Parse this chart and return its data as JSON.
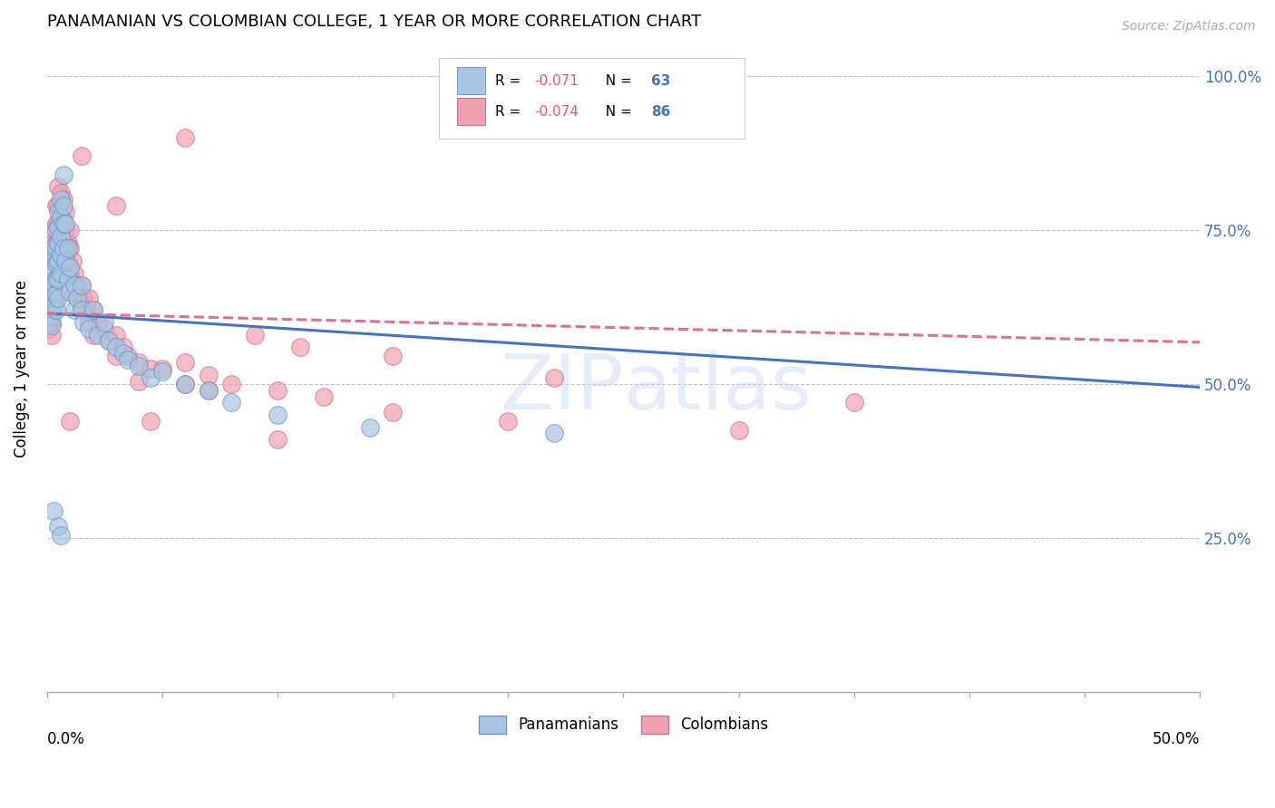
{
  "title": "PANAMANIAN VS COLOMBIAN COLLEGE, 1 YEAR OR MORE CORRELATION CHART",
  "source": "Source: ZipAtlas.com",
  "ylabel": "College, 1 year or more",
  "watermark": "ZIPAtlas",
  "panamanian_color": "#a8c4e0",
  "colombian_color": "#f0a0b0",
  "pan_edge_color": "#6699cc",
  "col_edge_color": "#d07090",
  "trend_pan_color": "#4472c4",
  "trend_col_color": "#e07090",
  "pan_scatter": [
    [
      0.001,
      0.615
    ],
    [
      0.001,
      0.6
    ],
    [
      0.002,
      0.62
    ],
    [
      0.002,
      0.61
    ],
    [
      0.002,
      0.595
    ],
    [
      0.003,
      0.72
    ],
    [
      0.003,
      0.7
    ],
    [
      0.003,
      0.685
    ],
    [
      0.003,
      0.665
    ],
    [
      0.003,
      0.645
    ],
    [
      0.003,
      0.625
    ],
    [
      0.004,
      0.75
    ],
    [
      0.004,
      0.72
    ],
    [
      0.004,
      0.695
    ],
    [
      0.004,
      0.67
    ],
    [
      0.004,
      0.645
    ],
    [
      0.004,
      0.62
    ],
    [
      0.005,
      0.78
    ],
    [
      0.005,
      0.755
    ],
    [
      0.005,
      0.73
    ],
    [
      0.005,
      0.7
    ],
    [
      0.005,
      0.67
    ],
    [
      0.005,
      0.64
    ],
    [
      0.006,
      0.8
    ],
    [
      0.006,
      0.77
    ],
    [
      0.006,
      0.74
    ],
    [
      0.006,
      0.71
    ],
    [
      0.006,
      0.68
    ],
    [
      0.007,
      0.84
    ],
    [
      0.007,
      0.79
    ],
    [
      0.007,
      0.76
    ],
    [
      0.007,
      0.72
    ],
    [
      0.008,
      0.76
    ],
    [
      0.008,
      0.7
    ],
    [
      0.009,
      0.72
    ],
    [
      0.009,
      0.67
    ],
    [
      0.01,
      0.69
    ],
    [
      0.01,
      0.65
    ],
    [
      0.012,
      0.66
    ],
    [
      0.012,
      0.62
    ],
    [
      0.013,
      0.64
    ],
    [
      0.015,
      0.66
    ],
    [
      0.015,
      0.62
    ],
    [
      0.016,
      0.6
    ],
    [
      0.018,
      0.59
    ],
    [
      0.02,
      0.62
    ],
    [
      0.022,
      0.58
    ],
    [
      0.025,
      0.6
    ],
    [
      0.027,
      0.57
    ],
    [
      0.03,
      0.56
    ],
    [
      0.033,
      0.55
    ],
    [
      0.035,
      0.54
    ],
    [
      0.04,
      0.53
    ],
    [
      0.045,
      0.51
    ],
    [
      0.05,
      0.52
    ],
    [
      0.06,
      0.5
    ],
    [
      0.07,
      0.49
    ],
    [
      0.08,
      0.47
    ],
    [
      0.1,
      0.45
    ],
    [
      0.14,
      0.43
    ],
    [
      0.22,
      0.42
    ],
    [
      0.003,
      0.295
    ],
    [
      0.005,
      0.27
    ],
    [
      0.006,
      0.255
    ]
  ],
  "colombian_scatter": [
    [
      0.001,
      0.62
    ],
    [
      0.001,
      0.605
    ],
    [
      0.001,
      0.59
    ],
    [
      0.002,
      0.64
    ],
    [
      0.002,
      0.62
    ],
    [
      0.002,
      0.6
    ],
    [
      0.002,
      0.58
    ],
    [
      0.003,
      0.75
    ],
    [
      0.003,
      0.73
    ],
    [
      0.003,
      0.71
    ],
    [
      0.003,
      0.69
    ],
    [
      0.003,
      0.665
    ],
    [
      0.003,
      0.64
    ],
    [
      0.004,
      0.79
    ],
    [
      0.004,
      0.76
    ],
    [
      0.004,
      0.73
    ],
    [
      0.004,
      0.7
    ],
    [
      0.004,
      0.67
    ],
    [
      0.004,
      0.64
    ],
    [
      0.005,
      0.82
    ],
    [
      0.005,
      0.79
    ],
    [
      0.005,
      0.76
    ],
    [
      0.005,
      0.73
    ],
    [
      0.005,
      0.695
    ],
    [
      0.006,
      0.81
    ],
    [
      0.006,
      0.78
    ],
    [
      0.006,
      0.75
    ],
    [
      0.006,
      0.715
    ],
    [
      0.006,
      0.68
    ],
    [
      0.007,
      0.8
    ],
    [
      0.007,
      0.765
    ],
    [
      0.007,
      0.73
    ],
    [
      0.008,
      0.78
    ],
    [
      0.008,
      0.745
    ],
    [
      0.008,
      0.71
    ],
    [
      0.009,
      0.73
    ],
    [
      0.009,
      0.695
    ],
    [
      0.01,
      0.75
    ],
    [
      0.01,
      0.72
    ],
    [
      0.01,
      0.68
    ],
    [
      0.011,
      0.7
    ],
    [
      0.011,
      0.665
    ],
    [
      0.012,
      0.68
    ],
    [
      0.012,
      0.645
    ],
    [
      0.013,
      0.66
    ],
    [
      0.014,
      0.64
    ],
    [
      0.015,
      0.66
    ],
    [
      0.015,
      0.625
    ],
    [
      0.016,
      0.64
    ],
    [
      0.017,
      0.62
    ],
    [
      0.018,
      0.64
    ],
    [
      0.018,
      0.6
    ],
    [
      0.02,
      0.62
    ],
    [
      0.02,
      0.58
    ],
    [
      0.022,
      0.6
    ],
    [
      0.025,
      0.59
    ],
    [
      0.027,
      0.57
    ],
    [
      0.03,
      0.58
    ],
    [
      0.03,
      0.545
    ],
    [
      0.033,
      0.56
    ],
    [
      0.035,
      0.545
    ],
    [
      0.04,
      0.535
    ],
    [
      0.04,
      0.505
    ],
    [
      0.045,
      0.525
    ],
    [
      0.05,
      0.525
    ],
    [
      0.06,
      0.535
    ],
    [
      0.06,
      0.5
    ],
    [
      0.07,
      0.515
    ],
    [
      0.07,
      0.49
    ],
    [
      0.08,
      0.5
    ],
    [
      0.1,
      0.49
    ],
    [
      0.12,
      0.48
    ],
    [
      0.15,
      0.455
    ],
    [
      0.2,
      0.44
    ],
    [
      0.3,
      0.425
    ],
    [
      0.015,
      0.87
    ],
    [
      0.06,
      0.9
    ],
    [
      0.03,
      0.79
    ],
    [
      0.09,
      0.58
    ],
    [
      0.11,
      0.56
    ],
    [
      0.15,
      0.545
    ],
    [
      0.22,
      0.51
    ],
    [
      0.35,
      0.47
    ],
    [
      0.01,
      0.44
    ],
    [
      0.045,
      0.44
    ],
    [
      0.1,
      0.41
    ]
  ],
  "xmin": 0.0,
  "xmax": 0.5,
  "ymin": 0.0,
  "ymax": 1.05,
  "pan_trend_x": [
    0.0,
    0.5
  ],
  "pan_trend_y": [
    0.615,
    0.495
  ],
  "col_trend_x": [
    0.0,
    0.5
  ],
  "col_trend_y": [
    0.615,
    0.568
  ]
}
